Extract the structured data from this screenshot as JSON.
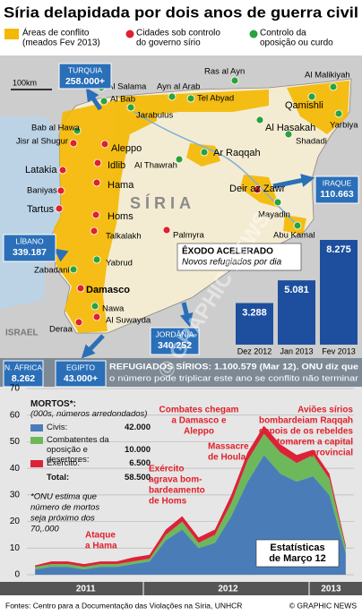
{
  "title": "Síria delapidada por dois anos de guerra civil",
  "legend": [
    {
      "lines": [
        "Áreas de conflito",
        "(meados Fev 2013)"
      ],
      "color": "#f5b800"
    },
    {
      "lines": [
        "Cidades sob controlo",
        "do governo sírio"
      ],
      "color": "#e0202a"
    },
    {
      "lines": [
        "Controlo da",
        "oposição ou curdo"
      ],
      "color": "#2aa33a"
    }
  ],
  "map": {
    "scale_label": "100km",
    "country": "SÍRIA",
    "neighbor": "ISRAEL",
    "cities": [
      {
        "name": "Al Malikiyah",
        "color": "#2aa33a"
      },
      {
        "name": "Ras al Ayn",
        "color": "#2aa33a"
      },
      {
        "name": "Al Salama",
        "color": "#2aa33a"
      },
      {
        "name": "Ayn al Arab",
        "color": "#2aa33a"
      },
      {
        "name": "Tel Abyad",
        "color": "#2aa33a"
      },
      {
        "name": "Qamishli",
        "color": "#2aa33a"
      },
      {
        "name": "Al Bab",
        "color": "#2aa33a"
      },
      {
        "name": "Jarabulus",
        "color": "#2aa33a"
      },
      {
        "name": "Yarbiya",
        "color": "#2aa33a"
      },
      {
        "name": "Bab al Hawa",
        "color": "#2aa33a"
      },
      {
        "name": "Al Hasakah",
        "color": "#2aa33a"
      },
      {
        "name": "Jisr al Shugur",
        "color": "#e0202a"
      },
      {
        "name": "Aleppo",
        "color": "#e0202a"
      },
      {
        "name": "Shadadi",
        "color": "#2aa33a"
      },
      {
        "name": "Ar Raqqah",
        "color": "#2aa33a"
      },
      {
        "name": "Latakia",
        "color": "#e0202a"
      },
      {
        "name": "Idlib",
        "color": "#e0202a"
      },
      {
        "name": "Al Thawrah",
        "color": "#2aa33a"
      },
      {
        "name": "Hama",
        "color": "#e0202a"
      },
      {
        "name": "Deir az Zawr",
        "color": "#e0202a"
      },
      {
        "name": "Baniyas",
        "color": "#e0202a"
      },
      {
        "name": "Tartus",
        "color": "#e0202a"
      },
      {
        "name": "Homs",
        "color": "#e0202a"
      },
      {
        "name": "Mayadin",
        "color": "#2aa33a"
      },
      {
        "name": "Talkalakh",
        "color": "#e0202a"
      },
      {
        "name": "Abu Kamal",
        "color": "#2aa33a"
      },
      {
        "name": "Palmyra",
        "color": "#e0202a"
      },
      {
        "name": "Yabrud",
        "color": "#2aa33a"
      },
      {
        "name": "Zabadani",
        "color": "#2aa33a"
      },
      {
        "name": "Damasco",
        "color": "#e0202a"
      },
      {
        "name": "Nawa",
        "color": "#2aa33a"
      },
      {
        "name": "Al Suwayda",
        "color": "#e0202a"
      },
      {
        "name": "Deraa",
        "color": "#e0202a"
      }
    ],
    "refugees": [
      {
        "country": "TURQUIA",
        "count": "258.000+"
      },
      {
        "country": "LÍBANO",
        "count": "339.187"
      },
      {
        "country": "JORDÂNIA",
        "count": "340.252"
      },
      {
        "country": "IRAQUE",
        "count": "110.663"
      },
      {
        "country": "N. ÁFRICA",
        "count": "8.262"
      },
      {
        "country": "EGIPTO",
        "count": "43.000+"
      }
    ]
  },
  "refugee_note": [
    "REFUGIADOS SÍRIOS: 1.100.579 (Mar 12). ONU diz que",
    "o número pode triplicar este ano se conflito não terminar"
  ],
  "chart_data": [
    {
      "type": "bar",
      "title": "ÊXODO ACELERADO",
      "subtitle": "Novos refugiados por dia",
      "categories": [
        "Dez 2012",
        "Jan 2013",
        "Fev 2013"
      ],
      "values": [
        3288,
        5081,
        8275
      ],
      "value_labels": [
        "3.288",
        "5.081",
        "8.275"
      ],
      "color": "#1d4f9e"
    },
    {
      "type": "area",
      "stacked": true,
      "title": "MORTOS*:",
      "subtitle": "(000s, números arredondados)",
      "x": [
        2011.3,
        2011.4,
        2011.5,
        2011.6,
        2011.7,
        2011.8,
        2011.9,
        2012.0,
        2012.1,
        2012.2,
        2012.3,
        2012.4,
        2012.5,
        2012.6,
        2012.7,
        2012.8,
        2012.9,
        2013.0,
        2013.1,
        2013.2
      ],
      "xlim": [
        2011.25,
        2013.25
      ],
      "xticks": [
        {
          "value": 2011.61,
          "label": "2011"
        },
        {
          "value": 2012.48,
          "label": "2012"
        },
        {
          "value": 2013.11,
          "label": "2013"
        }
      ],
      "ylim": [
        0,
        70
      ],
      "yticks": [
        0,
        10,
        20,
        30,
        40,
        50,
        60,
        70
      ],
      "grid": true,
      "series": [
        {
          "name": "Civis:",
          "color": "#4a7db8",
          "total": "42.000",
          "values": [
            2,
            3,
            3,
            2,
            3,
            3,
            4,
            5,
            13,
            17,
            10,
            12,
            22,
            35,
            45,
            38,
            35,
            37,
            30,
            8
          ]
        },
        {
          "name": "Combatentes da oposição e desertores:",
          "color": "#6db85a",
          "total": "10.000",
          "values": [
            1,
            1,
            1,
            1,
            1,
            1,
            1,
            1,
            2,
            3,
            2,
            3,
            5,
            8,
            8,
            8,
            7,
            8,
            6,
            2
          ]
        },
        {
          "name": "Exército:",
          "color": "#dc2238",
          "total": "6.500",
          "values": [
            0.5,
            1,
            1,
            1,
            1,
            1,
            1.5,
            1.5,
            2,
            2,
            2,
            2,
            3,
            3,
            3,
            3,
            3,
            2,
            2,
            1
          ]
        }
      ],
      "total": {
        "name": "Total:",
        "value": "58.500"
      },
      "note": [
        "*ONU estima que",
        "número de mortos",
        "seja próximo dos",
        "70,.000"
      ],
      "annotations": [
        {
          "lines": [
            "Ataque",
            "a Hama"
          ]
        },
        {
          "lines": [
            "Exército",
            "agrava bom-",
            "bardeamento",
            "de Homs"
          ]
        },
        {
          "lines": [
            "Combates chegam",
            "a Damasco e",
            "Aleppo"
          ]
        },
        {
          "lines": [
            "Massacre",
            "de Houla"
          ]
        },
        {
          "lines": [
            "Aviões sírios",
            "bombardeiam Raqqah",
            "depois de os rebeldes",
            "tomarem a capital",
            "provincial"
          ]
        },
        {
          "lines": [
            "Estatísticas",
            "de Março 12"
          ]
        }
      ]
    }
  ],
  "watermark": "© GRAPHIC NEWS",
  "footer": {
    "source": "Fontes: Centro para a Documentação das Violações na Síria, UNHCR",
    "credit": "© GRAPHIC NEWS"
  }
}
